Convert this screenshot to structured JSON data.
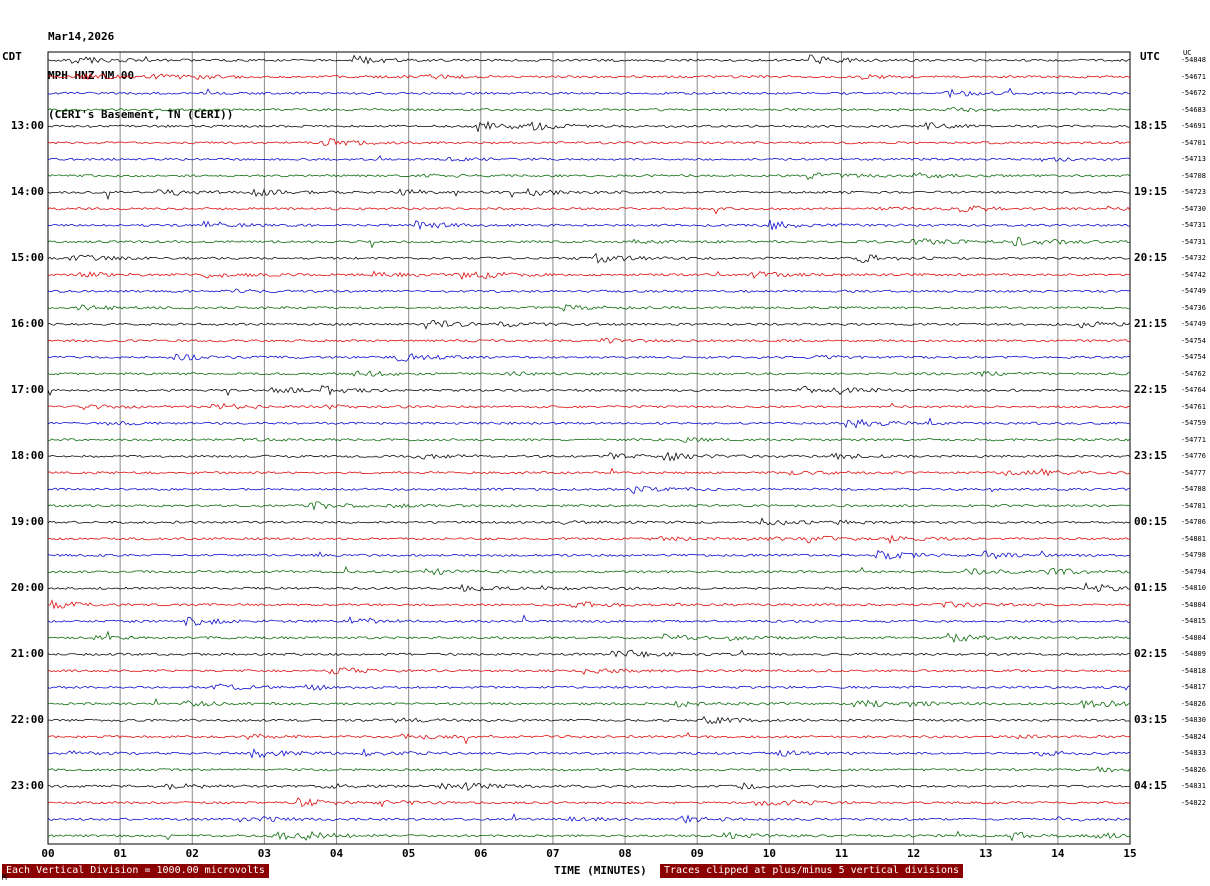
{
  "header": {
    "date": "Mar14,2026",
    "station": "MPH HNZ NM 00",
    "location": "(CERI's Basement, TN (CERI))"
  },
  "axes": {
    "left_label": "CDT",
    "right_label": "UTC",
    "right_col_header": "UC",
    "x_label": "TIME (MINUTES)",
    "x_ticks": [
      "00",
      "01",
      "02",
      "03",
      "04",
      "05",
      "06",
      "07",
      "08",
      "09",
      "10",
      "11",
      "12",
      "13",
      "14",
      "15"
    ],
    "left_times": [
      "13:00",
      "14:00",
      "15:00",
      "16:00",
      "17:00",
      "18:00",
      "19:00",
      "20:00",
      "21:00",
      "22:00",
      "23:00"
    ],
    "right_times": [
      "18:15",
      "19:15",
      "20:15",
      "21:15",
      "22:15",
      "23:15",
      "00:15",
      "01:15",
      "02:15",
      "03:15",
      "04:15"
    ]
  },
  "footer": {
    "scale_note": "Each Vertical Division = 1000.00 microvolts",
    "clip_note": "Traces clipped at plus/minus 5 vertical divisions",
    "corner_mark": "M"
  },
  "colors": {
    "grid": "#8a8a8a",
    "border": "#000000",
    "footer_bar": "#8b0000",
    "footer_text": "#ffffff"
  },
  "chart_data": {
    "type": "line",
    "subtype": "seismic-helicorder",
    "title": "MPH HNZ NM 00 — Mar14,2026 — (CERI's Basement, TN (CERI))",
    "xlabel": "TIME (MINUTES)",
    "x_range_minutes": [
      0,
      15
    ],
    "minutes_per_row": 15,
    "rows_per_hour": 4,
    "num_trace_rows": 48,
    "trace_color_cycle": [
      "#000000",
      "#dd0000",
      "#0000cc",
      "#006400"
    ],
    "left_axis": {
      "label": "CDT",
      "hour_tick_rows": [
        4,
        8,
        12,
        16,
        20,
        24,
        28,
        32,
        36,
        40,
        44
      ],
      "ticks": [
        "13:00",
        "14:00",
        "15:00",
        "16:00",
        "17:00",
        "18:00",
        "19:00",
        "20:00",
        "21:00",
        "22:00",
        "23:00"
      ]
    },
    "right_axis": {
      "label": "UTC",
      "ticks": [
        "18:15",
        "19:15",
        "20:15",
        "21:15",
        "22:15",
        "23:15",
        "00:15",
        "01:15",
        "02:15",
        "03:15",
        "04:15"
      ]
    },
    "row_dc_offsets": [
      -54848,
      -54671,
      -54672,
      -54683,
      -54691,
      -54701,
      -54713,
      -54708,
      -54723,
      -54730,
      -54731,
      -54731,
      -54732,
      -54742,
      -54749,
      -54736,
      -54749,
      -54754,
      -54754,
      -54762,
      -54764,
      -54761,
      -54759,
      -54771,
      -54776,
      -54777,
      -54788,
      -54781,
      -54786,
      -54801,
      -54798,
      -54794,
      -54810,
      -54804,
      -54815,
      -54804,
      -54809,
      -54818,
      -54817,
      -54826,
      -54830,
      -54824,
      -54833,
      -54826,
      -54831,
      -54822
    ],
    "scale": "Each Vertical Division = 1000.00 microvolts",
    "clipping": "Traces clipped at plus/minus 5 vertical divisions",
    "grid": "vertical gridlines at each minute, 0-15",
    "legend_position": "none",
    "waveform": "continuous background noise with intermittent small bursts; amplitudes not individually readable"
  }
}
